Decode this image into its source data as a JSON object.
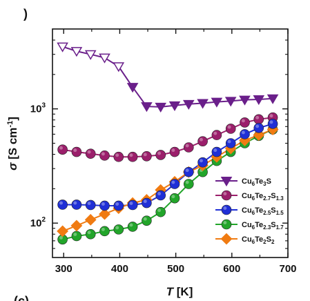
{
  "panel_label": ")",
  "panel_label_next": "(c)",
  "colors": {
    "purple": "#6a1f8a",
    "maroon": "#9b1f6b",
    "blue": "#1f2fd6",
    "green": "#22a52a",
    "orange": "#f07b12"
  },
  "chart_data": {
    "type": "line",
    "xlabel_var": "T",
    "xlabel_unit": " [K]",
    "ylabel_var": "σ",
    "ylabel_unit": " [S cm",
    "ylabel_sup": "-1",
    "ylabel_close": "]",
    "xlim": [
      280,
      700
    ],
    "ylim": [
      50,
      5000
    ],
    "yscale": "log",
    "xticks": [
      300,
      400,
      500,
      600,
      700
    ],
    "xtick_labels": [
      "300",
      "400",
      "500",
      "600",
      "700"
    ],
    "yticks": [
      100,
      1000
    ],
    "ytick_labels": [
      {
        "base": "10",
        "exp": "2"
      },
      {
        "base": "10",
        "exp": "3"
      }
    ],
    "legend_position": "lower-right",
    "series": [
      {
        "key": "s1",
        "name_parts": [
          [
            "Cu",
            false
          ],
          [
            "6",
            true
          ],
          [
            "Te",
            false
          ],
          [
            "3",
            true
          ],
          [
            "S",
            false
          ]
        ],
        "marker": "triangle-down",
        "color": "#6a1f8a",
        "x": [
          298,
          323,
          348,
          373,
          398,
          423,
          448,
          473,
          498,
          523,
          548,
          573,
          598,
          623,
          648,
          673
        ],
        "y": [
          3500,
          3200,
          3000,
          2800,
          2350,
          1550,
          1050,
          1040,
          1070,
          1100,
          1120,
          1150,
          1170,
          1200,
          1210,
          1230
        ],
        "open_count": 5
      },
      {
        "key": "s2",
        "name_parts": [
          [
            "Cu",
            false
          ],
          [
            "6",
            true
          ],
          [
            "Te",
            false
          ],
          [
            "2.7",
            true
          ],
          [
            "S",
            false
          ],
          [
            "1.3",
            true
          ]
        ],
        "marker": "circle",
        "color": "#9b1f6b",
        "x": [
          298,
          323,
          348,
          373,
          398,
          423,
          448,
          473,
          498,
          523,
          548,
          573,
          598,
          623,
          648,
          673
        ],
        "y": [
          440,
          420,
          405,
          390,
          380,
          380,
          385,
          395,
          420,
          460,
          520,
          590,
          670,
          760,
          810,
          840
        ],
        "open_count": 0
      },
      {
        "key": "s3",
        "name_parts": [
          [
            "Cu",
            false
          ],
          [
            "6",
            true
          ],
          [
            "Te",
            false
          ],
          [
            "2.5",
            true
          ],
          [
            "S",
            false
          ],
          [
            "1.5",
            true
          ]
        ],
        "marker": "circle",
        "color": "#1f2fd6",
        "x": [
          298,
          323,
          348,
          373,
          398,
          423,
          448,
          473,
          498,
          523,
          548,
          573,
          598,
          623,
          648,
          673
        ],
        "y": [
          145,
          145,
          144,
          142,
          142,
          144,
          150,
          175,
          220,
          280,
          340,
          420,
          500,
          600,
          680,
          740
        ],
        "open_count": 0
      },
      {
        "key": "s4",
        "name_parts": [
          [
            "Cu",
            false
          ],
          [
            "6",
            true
          ],
          [
            "Te",
            false
          ],
          [
            "2.3",
            true
          ],
          [
            "S",
            false
          ],
          [
            "1.7",
            true
          ]
        ],
        "marker": "circle",
        "color": "#22a52a",
        "x": [
          298,
          323,
          348,
          373,
          398,
          423,
          448,
          473,
          498,
          523,
          548,
          573,
          598,
          623,
          648,
          673
        ],
        "y": [
          72,
          77,
          80,
          85,
          88,
          93,
          105,
          125,
          165,
          220,
          280,
          350,
          420,
          500,
          580,
          660
        ],
        "open_count": 0
      },
      {
        "key": "s5",
        "name_parts": [
          [
            "Cu",
            false
          ],
          [
            "6",
            true
          ],
          [
            "Te",
            false
          ],
          [
            "2",
            true
          ],
          [
            "S",
            false
          ],
          [
            "2",
            true
          ]
        ],
        "marker": "diamond",
        "color": "#f07b12",
        "x": [
          298,
          323,
          348,
          373,
          398,
          423,
          448,
          473,
          498,
          523,
          548,
          573,
          598,
          623,
          648,
          673
        ],
        "y": [
          85,
          95,
          107,
          120,
          135,
          150,
          160,
          195,
          230,
          280,
          320,
          380,
          450,
          530,
          590,
          660
        ],
        "open_count": 0
      }
    ]
  }
}
